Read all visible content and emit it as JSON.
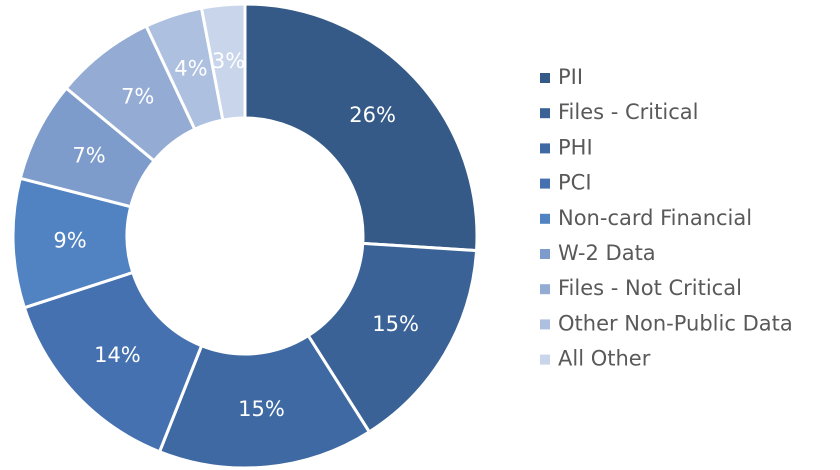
{
  "chart_data": {
    "type": "doughnut",
    "categories": [
      "PII",
      "Files - Critical",
      "PHI",
      "PCI",
      "Non-card Financial",
      "W-2 Data",
      "Files - Not Critical",
      "Other Non-Public Data",
      "All Other"
    ],
    "values": [
      26,
      15,
      15,
      14,
      9,
      7,
      7,
      4,
      3
    ],
    "value_labels": [
      "26%",
      "15%",
      "15%",
      "14%",
      "9%",
      "7%",
      "7%",
      "4%",
      "3%"
    ],
    "colors": [
      "#355a87",
      "#3a6296",
      "#3f69a3",
      "#4571b0",
      "#5183c2",
      "#7d9bcb",
      "#94acd4",
      "#adc0df",
      "#c9d5ea"
    ],
    "legend": "right"
  }
}
